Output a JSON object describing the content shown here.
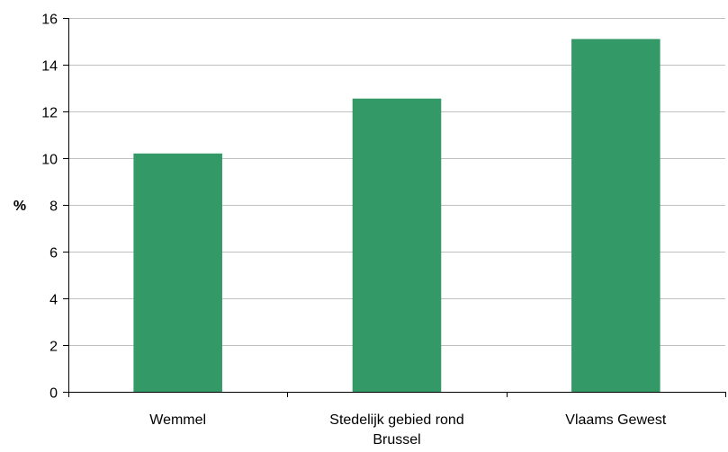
{
  "chart_data": {
    "type": "bar",
    "title": "",
    "xlabel": "",
    "ylabel": "%",
    "categories": [
      [
        "Wemmel"
      ],
      [
        "Stedelijk gebied rond",
        "Brussel"
      ],
      [
        "Vlaams Gewest"
      ]
    ],
    "values": [
      10.2,
      12.55,
      15.1
    ],
    "ylim": [
      0,
      16
    ],
    "yticks": [
      "0",
      "2",
      "4",
      "6",
      "8",
      "10",
      "12",
      "14",
      "16"
    ],
    "grid": true,
    "legend": "none",
    "colors": {
      "bar": "#339966",
      "grid": "#c0c0c0",
      "axis": "#000000"
    }
  }
}
